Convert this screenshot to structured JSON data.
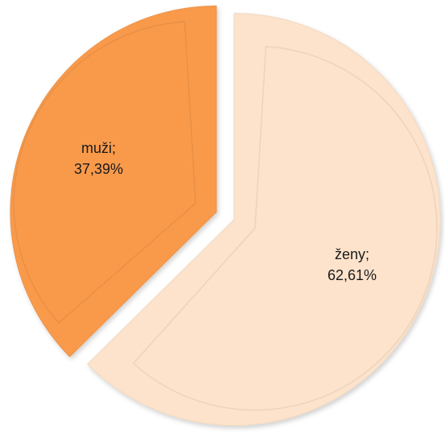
{
  "chart_data": {
    "type": "pie",
    "categories": [
      "ženy",
      "muži"
    ],
    "values": [
      62.61,
      37.39
    ],
    "value_labels": [
      "62,61%",
      "37,39%"
    ],
    "label_separator": ";",
    "colors": [
      "#fde3cb",
      "#f99a4c"
    ],
    "start_angle": 0,
    "direction": "clockwise",
    "exploded": true
  }
}
